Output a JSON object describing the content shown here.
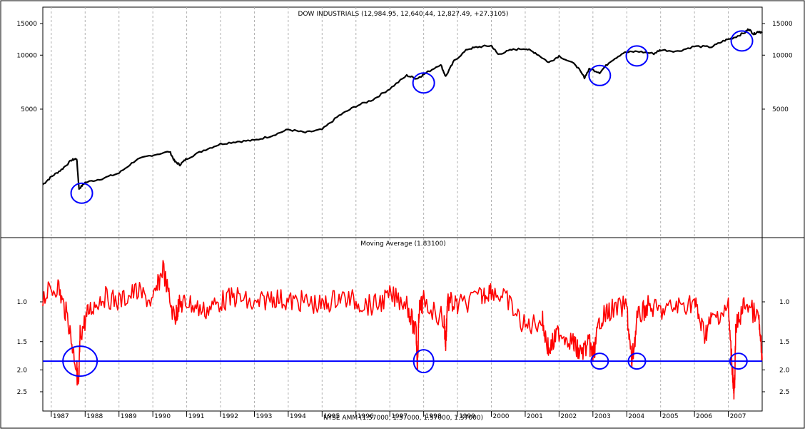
{
  "chart_data": [
    {
      "type": "line",
      "title": "DOW INDUSTRIALS (12,984.95, 12,640.44, 12,827.49, +27.3105)",
      "scale": "log",
      "y_ticks": [
        5000,
        10000,
        15000
      ],
      "y_tick_labels": [
        "5000",
        "10000",
        "15000"
      ],
      "series": [
        {
          "color": "#000000",
          "x": [
            1986.75,
            1987.0,
            1987.3,
            1987.6,
            1987.75,
            1987.82,
            1988.0,
            1988.5,
            1989.0,
            1989.5,
            1989.9,
            1990.5,
            1990.65,
            1990.8,
            1991.0,
            1991.5,
            1992.0,
            1992.5,
            1993.0,
            1993.5,
            1994.0,
            1994.5,
            1995.0,
            1995.5,
            1996.0,
            1996.5,
            1997.0,
            1997.5,
            1997.8,
            1998.0,
            1998.5,
            1998.65,
            1998.9,
            1999.3,
            1999.6,
            2000.0,
            2000.2,
            2000.6,
            2001.0,
            2001.3,
            2001.7,
            2002.0,
            2002.5,
            2002.75,
            2002.9,
            2003.2,
            2003.5,
            2003.9,
            2004.3,
            2004.8,
            2005.0,
            2005.5,
            2006.0,
            2006.5,
            2006.9,
            2007.2,
            2007.5,
            2007.6,
            2007.75,
            2007.9,
            2008.0
          ],
          "y": [
            1900,
            2100,
            2300,
            2600,
            2650,
            1800,
            1950,
            2050,
            2200,
            2600,
            2750,
            2900,
            2550,
            2450,
            2650,
            2950,
            3200,
            3300,
            3350,
            3550,
            3850,
            3700,
            3850,
            4600,
            5200,
            5650,
            6500,
            7700,
            7400,
            7800,
            8900,
            7600,
            9300,
            10800,
            11100,
            11300,
            10100,
            10700,
            10900,
            10300,
            9100,
            9900,
            8800,
            7500,
            8400,
            8000,
            9200,
            10300,
            10500,
            10200,
            10700,
            10500,
            11200,
            11100,
            12100,
            12600,
            13400,
            14000,
            13100,
            13600,
            13300
          ]
        }
      ]
    },
    {
      "type": "line",
      "title": "Moving Average (1.83100)",
      "scale": "log",
      "y_ticks": [
        1.0,
        1.5,
        2.0,
        2.5
      ],
      "y_tick_labels": [
        "1.0",
        "1.5",
        "2.0",
        "2.5"
      ],
      "reference_line": {
        "value": 1.83,
        "color": "#0000ff"
      },
      "series": [
        {
          "color": "#ff0000",
          "x": [
            1986.75,
            1987.2,
            1987.5,
            1987.75,
            1987.8,
            1987.85,
            1988.1,
            1988.5,
            1989.0,
            1989.5,
            1990.0,
            1990.3,
            1990.65,
            1990.75,
            1991.0,
            1991.5,
            1992.0,
            1992.5,
            1993.0,
            1993.5,
            1994.0,
            1994.5,
            1995.0,
            1995.5,
            1996.0,
            1996.5,
            1997.0,
            1997.5,
            1997.78,
            1997.82,
            1997.86,
            1998.0,
            1998.6,
            1998.65,
            1998.7,
            1999.0,
            1999.7,
            2000.0,
            2000.5,
            2001.0,
            2001.5,
            2001.7,
            2002.0,
            2002.4,
            2002.6,
            2002.9,
            2003.0,
            2003.2,
            2003.5,
            2004.0,
            2004.15,
            2004.3,
            2004.6,
            2005.0,
            2005.5,
            2006.0,
            2006.3,
            2006.5,
            2007.0,
            2007.13,
            2007.17,
            2007.22,
            2007.5,
            2007.9,
            2008.0
          ],
          "y": [
            0.95,
            0.85,
            1.2,
            1.95,
            2.5,
            1.4,
            1.1,
            0.95,
            1.0,
            0.9,
            1.0,
            0.7,
            1.2,
            1.05,
            1.0,
            1.1,
            1.0,
            0.95,
            1.05,
            0.95,
            1.0,
            1.0,
            1.05,
            0.95,
            1.0,
            1.05,
            0.95,
            1.0,
            1.4,
            1.9,
            1.1,
            1.0,
            1.2,
            1.55,
            1.0,
            1.05,
            0.95,
            0.88,
            1.0,
            1.3,
            1.2,
            1.65,
            1.35,
            1.5,
            1.7,
            1.55,
            1.75,
            1.2,
            1.1,
            1.05,
            1.85,
            1.2,
            1.05,
            1.1,
            1.05,
            1.0,
            1.4,
            1.2,
            1.05,
            2.05,
            2.7,
            1.3,
            1.0,
            1.2,
            1.8
          ]
        }
      ]
    }
  ],
  "x_axis": {
    "years": [
      "1987",
      "1988",
      "1989",
      "1990",
      "1991",
      "1992",
      "1993",
      "1994",
      "1995",
      "1996",
      "1997",
      "1998",
      "1999",
      "2000",
      "2001",
      "2002",
      "2003",
      "2004",
      "2005",
      "2006",
      "2007"
    ],
    "footer": "NYSE AMM (1.57000, 1.57000, 1.57000, 1.57000)"
  },
  "annotations": {
    "circle_color": "#0000ff",
    "top_circles": [
      {
        "x": 1987.9,
        "y": 1700
      },
      {
        "x": 1998.0,
        "y": 7000
      },
      {
        "x": 2003.2,
        "y": 7700
      },
      {
        "x": 2004.3,
        "y": 9900
      },
      {
        "x": 2007.4,
        "y": 12000
      }
    ],
    "bottom_circles": [
      {
        "x": 1987.85,
        "y": 1.83
      },
      {
        "x": 1998.0,
        "y": 1.83
      },
      {
        "x": 2003.2,
        "y": 1.83
      },
      {
        "x": 2004.3,
        "y": 1.83
      },
      {
        "x": 2007.3,
        "y": 1.83
      }
    ]
  }
}
